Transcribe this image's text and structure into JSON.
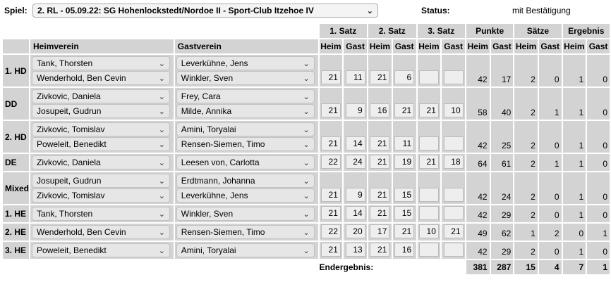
{
  "header": {
    "spiel_label": "Spiel:",
    "spiel_value": "2. RL - 05.09.22:  SG Hohenlockstedt/Nordoe II - Sport-Club Itzehoe IV",
    "status_label": "Status:",
    "status_value": "mit Bestätigung"
  },
  "columns": {
    "heimverein": "Heimverein",
    "gastverein": "Gastverein",
    "groups": [
      "1. Satz",
      "2. Satz",
      "3. Satz",
      "Punkte",
      "Sätze",
      "Ergebnis"
    ],
    "heim": "Heim",
    "gast": "Gast"
  },
  "matches": [
    {
      "label": "1. HD",
      "home": [
        "Tank, Thorsten",
        "Wenderhold, Ben Cevin"
      ],
      "guest": [
        "Leverkühne, Jens",
        "Winkler, Sven"
      ],
      "sets": [
        "21",
        "11",
        "21",
        "6",
        "",
        ""
      ],
      "punkte": [
        "42",
        "17"
      ],
      "saetze": [
        "2",
        "0"
      ],
      "ergebnis": [
        "1",
        "0"
      ]
    },
    {
      "label": "DD",
      "home": [
        "Zivkovic, Daniela",
        "Josupeit, Gudrun"
      ],
      "guest": [
        "Frey, Cara",
        "Milde, Annika"
      ],
      "sets": [
        "21",
        "9",
        "16",
        "21",
        "21",
        "10"
      ],
      "punkte": [
        "58",
        "40"
      ],
      "saetze": [
        "2",
        "1"
      ],
      "ergebnis": [
        "1",
        "0"
      ]
    },
    {
      "label": "2. HD",
      "home": [
        "Zivkovic, Tomislav",
        "Poweleit, Benedikt"
      ],
      "guest": [
        "Amini, Toryalai",
        "Rensen-Siemen, Timo"
      ],
      "sets": [
        "21",
        "14",
        "21",
        "11",
        "",
        ""
      ],
      "punkte": [
        "42",
        "25"
      ],
      "saetze": [
        "2",
        "0"
      ],
      "ergebnis": [
        "1",
        "0"
      ]
    },
    {
      "label": "DE",
      "home": [
        "Zivkovic, Daniela"
      ],
      "guest": [
        "Leesen von, Carlotta"
      ],
      "sets": [
        "22",
        "24",
        "21",
        "19",
        "21",
        "18"
      ],
      "punkte": [
        "64",
        "61"
      ],
      "saetze": [
        "2",
        "1"
      ],
      "ergebnis": [
        "1",
        "0"
      ]
    },
    {
      "label": "Mixed",
      "home": [
        "Josupeit, Gudrun",
        "Zivkovic, Tomislav"
      ],
      "guest": [
        "Erdtmann, Johanna",
        "Leverkühne, Jens"
      ],
      "sets": [
        "21",
        "9",
        "21",
        "15",
        "",
        ""
      ],
      "punkte": [
        "42",
        "24"
      ],
      "saetze": [
        "2",
        "0"
      ],
      "ergebnis": [
        "1",
        "0"
      ]
    },
    {
      "label": "1. HE",
      "home": [
        "Tank, Thorsten"
      ],
      "guest": [
        "Winkler, Sven"
      ],
      "sets": [
        "21",
        "14",
        "21",
        "15",
        "",
        ""
      ],
      "punkte": [
        "42",
        "29"
      ],
      "saetze": [
        "2",
        "0"
      ],
      "ergebnis": [
        "1",
        "0"
      ]
    },
    {
      "label": "2. HE",
      "home": [
        "Wenderhold, Ben Cevin"
      ],
      "guest": [
        "Rensen-Siemen, Timo"
      ],
      "sets": [
        "22",
        "20",
        "17",
        "21",
        "10",
        "21"
      ],
      "punkte": [
        "49",
        "62"
      ],
      "saetze": [
        "1",
        "2"
      ],
      "ergebnis": [
        "0",
        "1"
      ]
    },
    {
      "label": "3. HE",
      "home": [
        "Poweleit, Benedikt"
      ],
      "guest": [
        "Amini, Toryalai"
      ],
      "sets": [
        "21",
        "13",
        "21",
        "16",
        "",
        ""
      ],
      "punkte": [
        "42",
        "29"
      ],
      "saetze": [
        "2",
        "0"
      ],
      "ergebnis": [
        "1",
        "0"
      ]
    }
  ],
  "footer": {
    "label": "Endergebnis:",
    "punkte": [
      "381",
      "287"
    ],
    "saetze": [
      "15",
      "4"
    ],
    "ergebnis": [
      "7",
      "1"
    ]
  }
}
